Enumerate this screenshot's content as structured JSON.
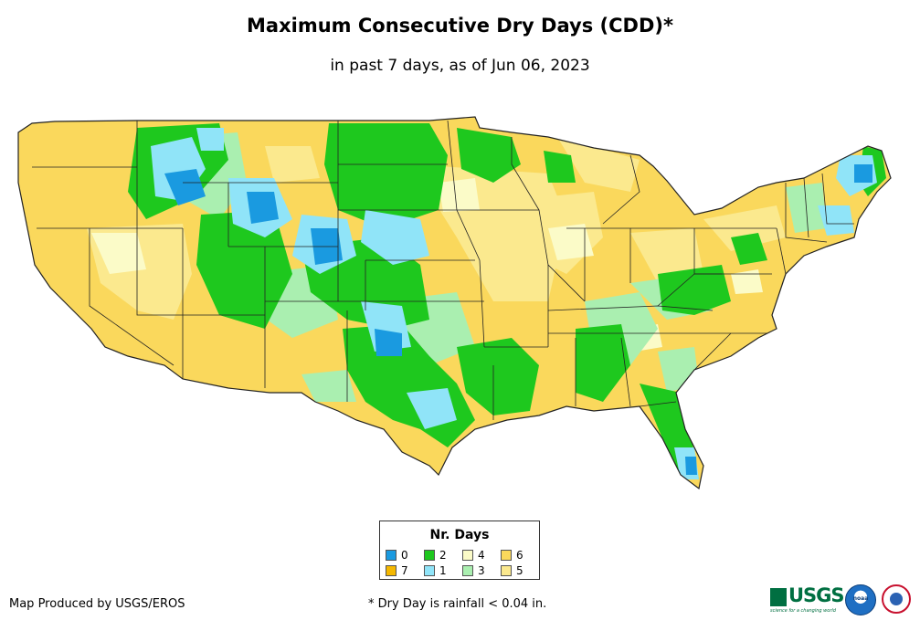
{
  "title": "Maximum Consecutive Dry Days (CDD)*",
  "subtitle": "in past 7 days, as of Jun 06, 2023",
  "legend": {
    "title": "Nr. Days",
    "items": [
      {
        "label": "0",
        "color": "#1a9ae0"
      },
      {
        "label": "2",
        "color": "#1ec81e"
      },
      {
        "label": "4",
        "color": "#fbfbc8"
      },
      {
        "label": "6",
        "color": "#fad85c"
      },
      {
        "label": "7",
        "color": "#f5b800"
      },
      {
        "label": "1",
        "color": "#90e4f8"
      },
      {
        "label": "3",
        "color": "#aaefb0"
      },
      {
        "label": "5",
        "color": "#fbe98e"
      }
    ]
  },
  "credit": "Map Produced by USGS/EROS",
  "footnote": "* Dry Day is rainfall < 0.04 in.",
  "logos": {
    "usgs": "USGS",
    "usgs_tagline": "science for a changing world",
    "noaa": "noaa",
    "nws": "National Weather Service"
  },
  "map": {
    "name": "Contiguous United States",
    "colors": {
      "base": "#fad85c",
      "light": "#fbe98e",
      "pale": "#fbfbc8",
      "green": "#1ec81e",
      "lightgreen": "#aaefb0",
      "cyan": "#90e4f8",
      "blue": "#1a9ae0",
      "border": "#222222"
    }
  }
}
